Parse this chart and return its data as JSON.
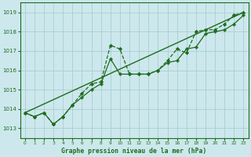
{
  "title": "Graphe pression niveau de la mer (hPa)",
  "bg_color": "#cce8ec",
  "grid_color": "#aacdd4",
  "line_color1": "#1e6b1e",
  "line_color2": "#1e6b1e",
  "line_color3": "#1e6b1e",
  "xlim": [
    -0.5,
    23.5
  ],
  "ylim": [
    1012.5,
    1019.5
  ],
  "yticks": [
    1013,
    1014,
    1015,
    1016,
    1017,
    1018,
    1019
  ],
  "xticks": [
    0,
    1,
    2,
    3,
    4,
    5,
    6,
    7,
    8,
    9,
    10,
    11,
    12,
    13,
    14,
    15,
    16,
    17,
    18,
    19,
    20,
    21,
    22,
    23
  ],
  "line1_x": [
    0,
    1,
    2,
    3,
    4,
    5,
    6,
    7,
    8,
    9,
    10,
    11,
    12,
    13,
    14,
    15,
    16,
    17,
    18,
    19,
    20,
    21,
    22,
    23
  ],
  "line1_y": [
    1013.8,
    1013.6,
    1013.8,
    1013.2,
    1013.6,
    1014.2,
    1014.8,
    1015.3,
    1015.4,
    1017.3,
    1017.1,
    1015.8,
    1015.8,
    1015.8,
    1016.0,
    1016.5,
    1017.1,
    1016.9,
    1018.0,
    1018.1,
    1018.1,
    1018.4,
    1018.85,
    1019.0
  ],
  "line2_x": [
    0,
    1,
    2,
    3,
    4,
    5,
    6,
    7,
    8,
    9,
    10,
    11,
    12,
    13,
    14,
    15,
    16,
    17,
    18,
    19,
    20,
    21,
    22,
    23
  ],
  "line2_y": [
    1013.8,
    1013.6,
    1013.8,
    1013.2,
    1013.6,
    1014.2,
    1014.6,
    1015.0,
    1015.3,
    1016.6,
    1015.8,
    1015.8,
    1015.8,
    1015.8,
    1016.0,
    1016.4,
    1016.5,
    1017.1,
    1017.2,
    1017.9,
    1018.0,
    1018.1,
    1018.4,
    1018.85
  ],
  "line3_x": [
    0,
    23
  ],
  "line3_y": [
    1013.8,
    1019.0
  ]
}
